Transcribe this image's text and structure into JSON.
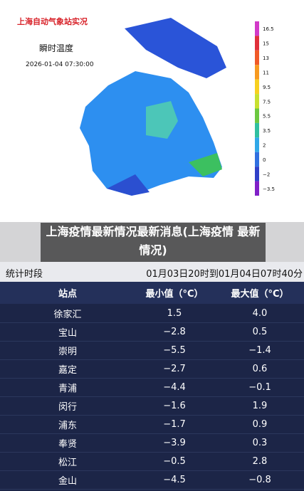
{
  "map": {
    "title": "上海自动气象站实况",
    "subtitle": "瞬时温度",
    "time": "2026-01-04 07:30:00",
    "legend": [
      "16.5",
      "15",
      "13",
      "11",
      "9.5",
      "7.5",
      "5.5",
      "3.5",
      "2",
      "0",
      "−2",
      "−3.5"
    ]
  },
  "headline": "上海疫情最新情况最新消息(上海疫情 最新情况)",
  "period": {
    "label": "统计时段",
    "value": "01月03日20时到01月04日07时40分"
  },
  "table": {
    "header": [
      "站点",
      "最小值（°C）",
      "最大值（°C）"
    ],
    "rows": [
      [
        "徐家汇",
        "1.5",
        "4.0"
      ],
      [
        "宝山",
        "−2.8",
        "0.5"
      ],
      [
        "崇明",
        "−5.5",
        "−1.4"
      ],
      [
        "嘉定",
        "−2.7",
        "0.6"
      ],
      [
        "青浦",
        "−4.4",
        "−0.1"
      ],
      [
        "闵行",
        "−1.6",
        "1.9"
      ],
      [
        "浦东",
        "−1.7",
        "0.9"
      ],
      [
        "奉贤",
        "−3.9",
        "0.3"
      ],
      [
        "松江",
        "−0.5",
        "2.8"
      ],
      [
        "金山",
        "−4.5",
        "−0.8"
      ]
    ]
  }
}
